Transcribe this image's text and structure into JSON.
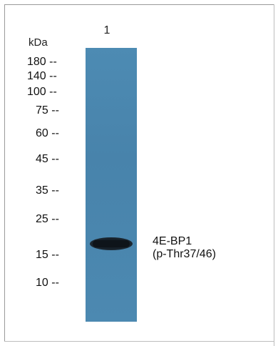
{
  "lane_header": "1",
  "unit_label": "kDa",
  "markers": [
    {
      "label": "180 --"
    },
    {
      "label": "140 --"
    },
    {
      "label": "100 --"
    },
    {
      "label": "75 --"
    },
    {
      "label": "60 --"
    },
    {
      "label": "45 --"
    },
    {
      "label": "35 --"
    },
    {
      "label": "25 --"
    },
    {
      "label": "15 --"
    },
    {
      "label": "10 --"
    }
  ],
  "band_annotation": {
    "line1": "4E-BP1",
    "line2": "(p-Thr37/46)"
  },
  "colors": {
    "lane": "#4a86ae",
    "band": "#111820",
    "text": "#111111"
  }
}
